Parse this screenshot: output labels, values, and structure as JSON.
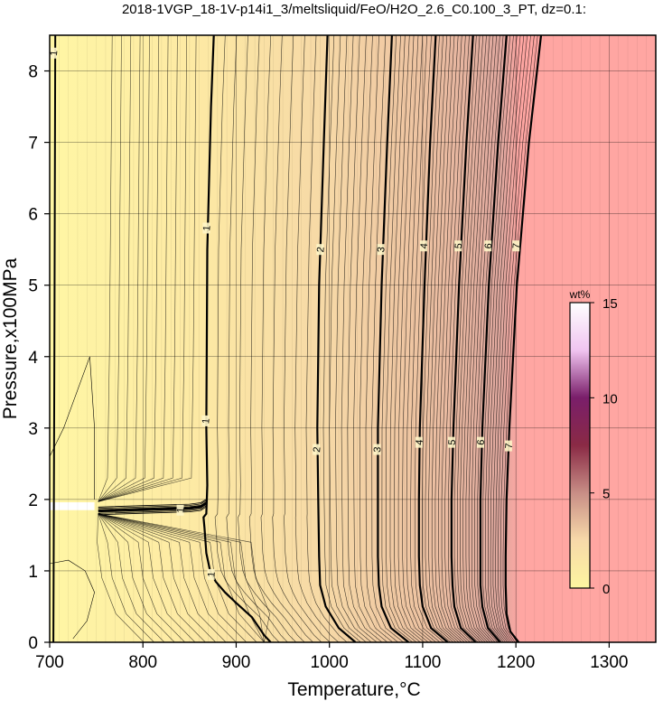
{
  "chart_data": {
    "type": "heatmap",
    "title": "2018-1VGP_18-1V-p14i1_3/meltsliquid/FeO/H2O_2.6_C0.100_3_PT, dz=0.1:",
    "xlabel": "Temperature,°C",
    "ylabel": "Pressure,x100MPa",
    "xlim": [
      700,
      1350
    ],
    "ylim": [
      0,
      8.5
    ],
    "x_ticks": [
      "700",
      "800",
      "900",
      "1000",
      "1100",
      "1200",
      "1300"
    ],
    "y_ticks": [
      "0",
      "1",
      "2",
      "3",
      "4",
      "5",
      "6",
      "7",
      "8"
    ],
    "grid": true,
    "colorbar": {
      "unit": "wt%",
      "min": 0,
      "max": 15,
      "ticks": [
        "0",
        "5",
        "10",
        "15"
      ],
      "colors": [
        "#fdf5a0",
        "#f7d9a9",
        "#c88e86",
        "#8a2a45",
        "#7a1e6a",
        "#f0c4f0",
        "#ffffff"
      ]
    },
    "colors": {
      "low_region": "#fff6a4",
      "high_region": "#ffa6a2",
      "contour_line": "#000000",
      "gap_band": "#ffffff"
    },
    "contours": [
      {
        "label": "1",
        "points": [
          [
            937,
            0
          ],
          [
            930,
            0.1
          ],
          [
            917,
            0.35
          ],
          [
            900,
            0.55
          ],
          [
            888,
            0.7
          ],
          [
            878,
            0.85
          ],
          [
            872,
            1.0
          ],
          [
            868,
            1.25
          ],
          [
            866,
            1.6
          ],
          [
            865,
            1.75
          ],
          [
            868,
            1.8
          ],
          [
            869,
            2.2
          ],
          [
            868,
            3.0
          ],
          [
            869,
            5.5
          ],
          [
            873,
            7.5
          ],
          [
            876,
            8.5
          ]
        ]
      },
      {
        "label": "2",
        "points": [
          [
            1028,
            0
          ],
          [
            1010,
            0.2
          ],
          [
            996,
            0.5
          ],
          [
            990,
            0.8
          ],
          [
            989,
            1.2
          ],
          [
            988,
            2.0
          ],
          [
            987,
            3.0
          ],
          [
            989,
            5.0
          ],
          [
            994,
            7.0
          ],
          [
            998,
            8.5
          ]
        ]
      },
      {
        "label": "3",
        "points": [
          [
            1085,
            0
          ],
          [
            1066,
            0.2
          ],
          [
            1056,
            0.5
          ],
          [
            1053,
            0.8
          ],
          [
            1052,
            1.2
          ],
          [
            1052,
            2.0
          ],
          [
            1052,
            3.0
          ],
          [
            1056,
            5.0
          ],
          [
            1062,
            7.0
          ],
          [
            1067,
            8.5
          ]
        ]
      },
      {
        "label": "4",
        "points": [
          [
            1127,
            0
          ],
          [
            1109,
            0.2
          ],
          [
            1100,
            0.5
          ],
          [
            1097,
            0.8
          ],
          [
            1096,
            1.2
          ],
          [
            1096,
            2.0
          ],
          [
            1097,
            3.0
          ],
          [
            1102,
            5.0
          ],
          [
            1108,
            7.0
          ],
          [
            1114,
            8.5
          ]
        ]
      },
      {
        "label": "5",
        "points": [
          [
            1157,
            0
          ],
          [
            1141,
            0.2
          ],
          [
            1134,
            0.5
          ],
          [
            1132,
            0.8
          ],
          [
            1131,
            1.2
          ],
          [
            1131,
            2.0
          ],
          [
            1133,
            3.0
          ],
          [
            1139,
            5.0
          ],
          [
            1147,
            7.0
          ],
          [
            1154,
            8.5
          ]
        ]
      },
      {
        "label": "6",
        "points": [
          [
            1183,
            0
          ],
          [
            1170,
            0.2
          ],
          [
            1164,
            0.5
          ],
          [
            1162,
            0.8
          ],
          [
            1162,
            1.2
          ],
          [
            1162,
            2.0
          ],
          [
            1164,
            3.0
          ],
          [
            1171,
            5.0
          ],
          [
            1181,
            7.0
          ],
          [
            1190,
            8.5
          ]
        ]
      },
      {
        "label": "7",
        "points": [
          [
            1203,
            0
          ],
          [
            1194,
            0.15
          ],
          [
            1190,
            0.4
          ],
          [
            1189,
            0.8
          ],
          [
            1189,
            1.2
          ],
          [
            1190,
            2.0
          ],
          [
            1193,
            3.0
          ],
          [
            1201,
            5.0
          ],
          [
            1214,
            7.0
          ],
          [
            1227,
            8.5
          ]
        ]
      }
    ],
    "contour_labels": [
      {
        "text": "1",
        "x": 868,
        "y": 5.8
      },
      {
        "text": "1",
        "x": 867,
        "y": 3.1
      },
      {
        "text": "1",
        "x": 840,
        "y": 1.85
      },
      {
        "text": "1",
        "x": 873,
        "y": 0.95
      },
      {
        "text": "1",
        "x": 704,
        "y": 8.25
      },
      {
        "text": "2",
        "x": 990,
        "y": 5.5
      },
      {
        "text": "2",
        "x": 986,
        "y": 2.7
      },
      {
        "text": "3",
        "x": 1055,
        "y": 5.5
      },
      {
        "text": "3",
        "x": 1051,
        "y": 2.7
      },
      {
        "text": "4",
        "x": 1101,
        "y": 5.55
      },
      {
        "text": "4",
        "x": 1096,
        "y": 2.8
      },
      {
        "text": "5",
        "x": 1138,
        "y": 5.55
      },
      {
        "text": "5",
        "x": 1131,
        "y": 2.8
      },
      {
        "text": "6",
        "x": 1170,
        "y": 5.55
      },
      {
        "text": "6",
        "x": 1162,
        "y": 2.8
      },
      {
        "text": "7",
        "x": 1200,
        "y": 5.55
      },
      {
        "text": "7",
        "x": 1192,
        "y": 2.75
      }
    ]
  }
}
